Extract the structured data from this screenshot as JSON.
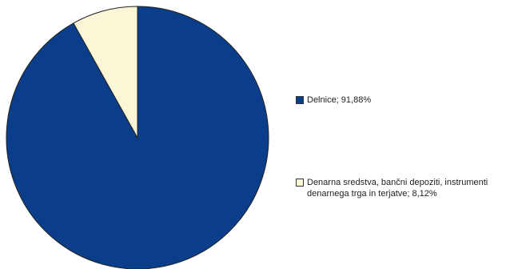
{
  "chart_data": {
    "type": "pie",
    "slices": [
      {
        "label": "Delnice; 91,88%",
        "value": 91.88,
        "color": "#0a3d8a"
      },
      {
        "label": "Denarna sredstva, bančni depoziti, instrumenti\ndenarnega trga in terjatve; 8,12%",
        "value": 8.12,
        "color": "#fbf6d6"
      }
    ],
    "legend_position": "right"
  }
}
